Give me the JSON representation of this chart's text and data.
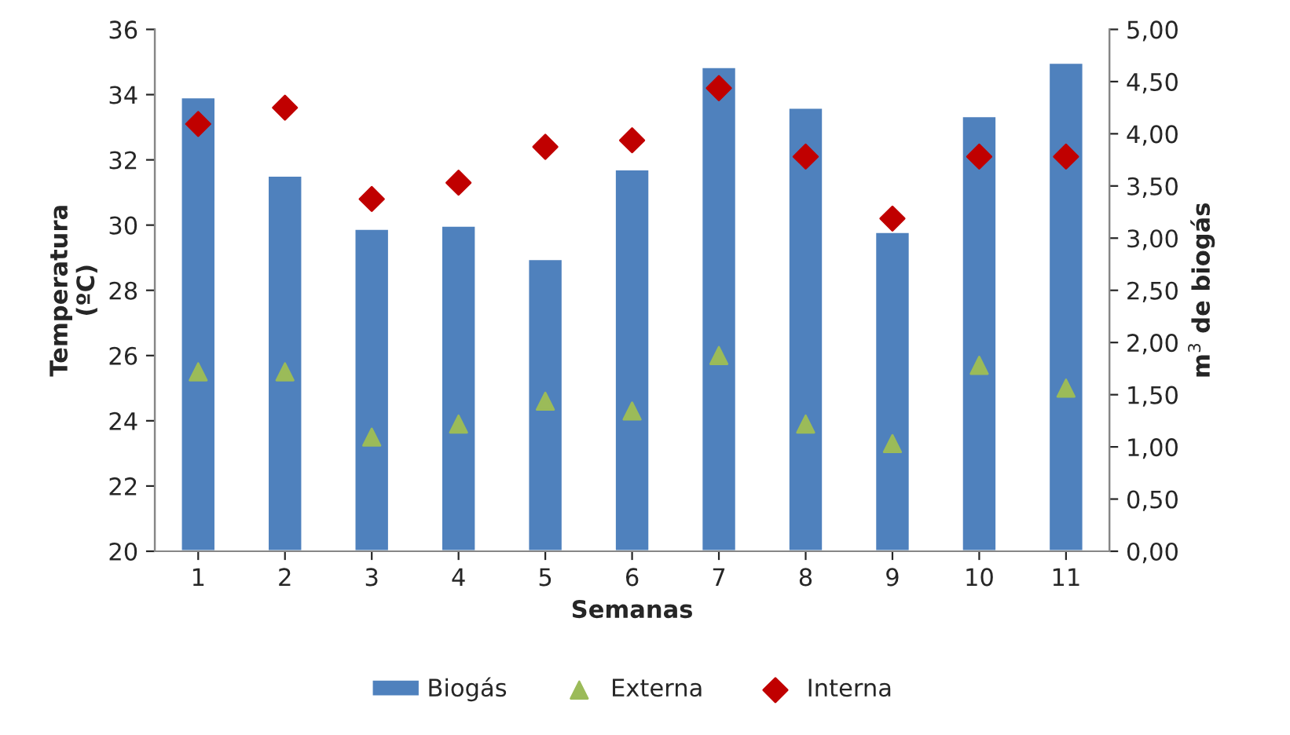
{
  "chart_data": {
    "type": "bar",
    "xlabel": "Semanas",
    "ylabel": "Temperatura\n(ºC)",
    "y2label": "m$^{3}$ de biogás",
    "categories": [
      "1",
      "2",
      "3",
      "4",
      "5",
      "6",
      "7",
      "8",
      "9",
      "10",
      "11"
    ],
    "series": [
      {
        "name": "Biogás",
        "axis": "y2",
        "color": "#4f81bd",
        "values": [
          4.35,
          3.6,
          3.09,
          3.12,
          2.8,
          3.66,
          4.64,
          4.25,
          3.06,
          4.17,
          4.68
        ]
      },
      {
        "name": "Externa",
        "type": "scatter",
        "marker": "triangle",
        "color": "#9bbb59",
        "values": [
          25.5,
          25.5,
          23.5,
          23.9,
          24.6,
          24.3,
          26.0,
          23.9,
          23.3,
          25.7,
          25.0
        ]
      },
      {
        "name": "Interna",
        "type": "scatter",
        "marker": "diamond",
        "color": "#c00000",
        "values": [
          33.1,
          33.6,
          30.8,
          31.3,
          32.4,
          32.6,
          34.2,
          32.1,
          30.2,
          32.1,
          32.1
        ]
      }
    ],
    "ylim": [
      20,
      36
    ],
    "yticks": [
      20,
      22,
      24,
      26,
      28,
      30,
      32,
      34,
      36
    ],
    "y2lim": [
      0,
      5
    ],
    "y2ticks": [
      {
        "value": 0,
        "label": "0,00"
      },
      {
        "value": 0.5,
        "label": "0,50"
      },
      {
        "value": 1,
        "label": "1,00"
      },
      {
        "value": 1.5,
        "label": "1,50"
      },
      {
        "value": 2,
        "label": "2,00"
      },
      {
        "value": 2.5,
        "label": "2,50"
      },
      {
        "value": 3,
        "label": "3,00"
      },
      {
        "value": 3.5,
        "label": "3,50"
      },
      {
        "value": 4,
        "label": "4,00"
      },
      {
        "value": 4.5,
        "label": "4,50"
      },
      {
        "value": 5,
        "label": "5,00"
      }
    ],
    "grid": false,
    "legend": "bottom"
  }
}
